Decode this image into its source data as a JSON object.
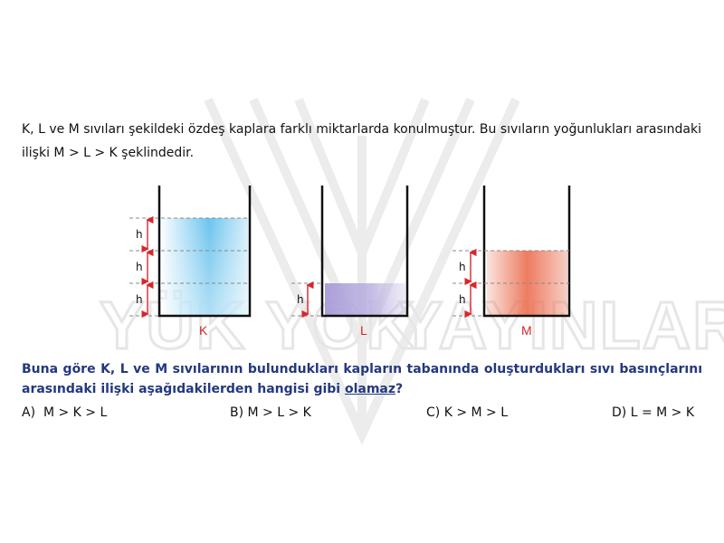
{
  "question": {
    "line1": "K, L ve M sıvıları şekildeki özdeş kaplara farklı miktarlarda konulmuştur. Bu sıvıların yoğunlukları arasındaki",
    "line2": "ilişki M > L > K şeklindedir."
  },
  "watermark": {
    "left_text": "YÜK YOK",
    "right_text": "YAYINLARI"
  },
  "figure": {
    "containers": [
      {
        "label": "K",
        "fill_levels_h": 3,
        "liquid_color": "#49b6ea"
      },
      {
        "label": "L",
        "fill_levels_h": 1,
        "liquid_color": "#b3a6d9"
      },
      {
        "label": "M",
        "fill_levels_h": 2,
        "liquid_color": "#ec7558"
      }
    ],
    "height_label": "h",
    "arrow_color": "#d8262b"
  },
  "prompt": {
    "text_before": "Buna göre K, L ve M sıvılarının bulundukları kapların tabanında oluşturdukları sıvı basınçlarını arasındaki ilişki aşağıdakilerden hangisi gibi ",
    "underlined": "olamaz",
    "text_after": "?"
  },
  "options": [
    {
      "letter": "A)",
      "text": "M > K > L"
    },
    {
      "letter": "B)",
      "text": "M > L > K"
    },
    {
      "letter": "C)",
      "text": "K > M > L"
    },
    {
      "letter": "D)",
      "text": "L = M > K"
    }
  ]
}
